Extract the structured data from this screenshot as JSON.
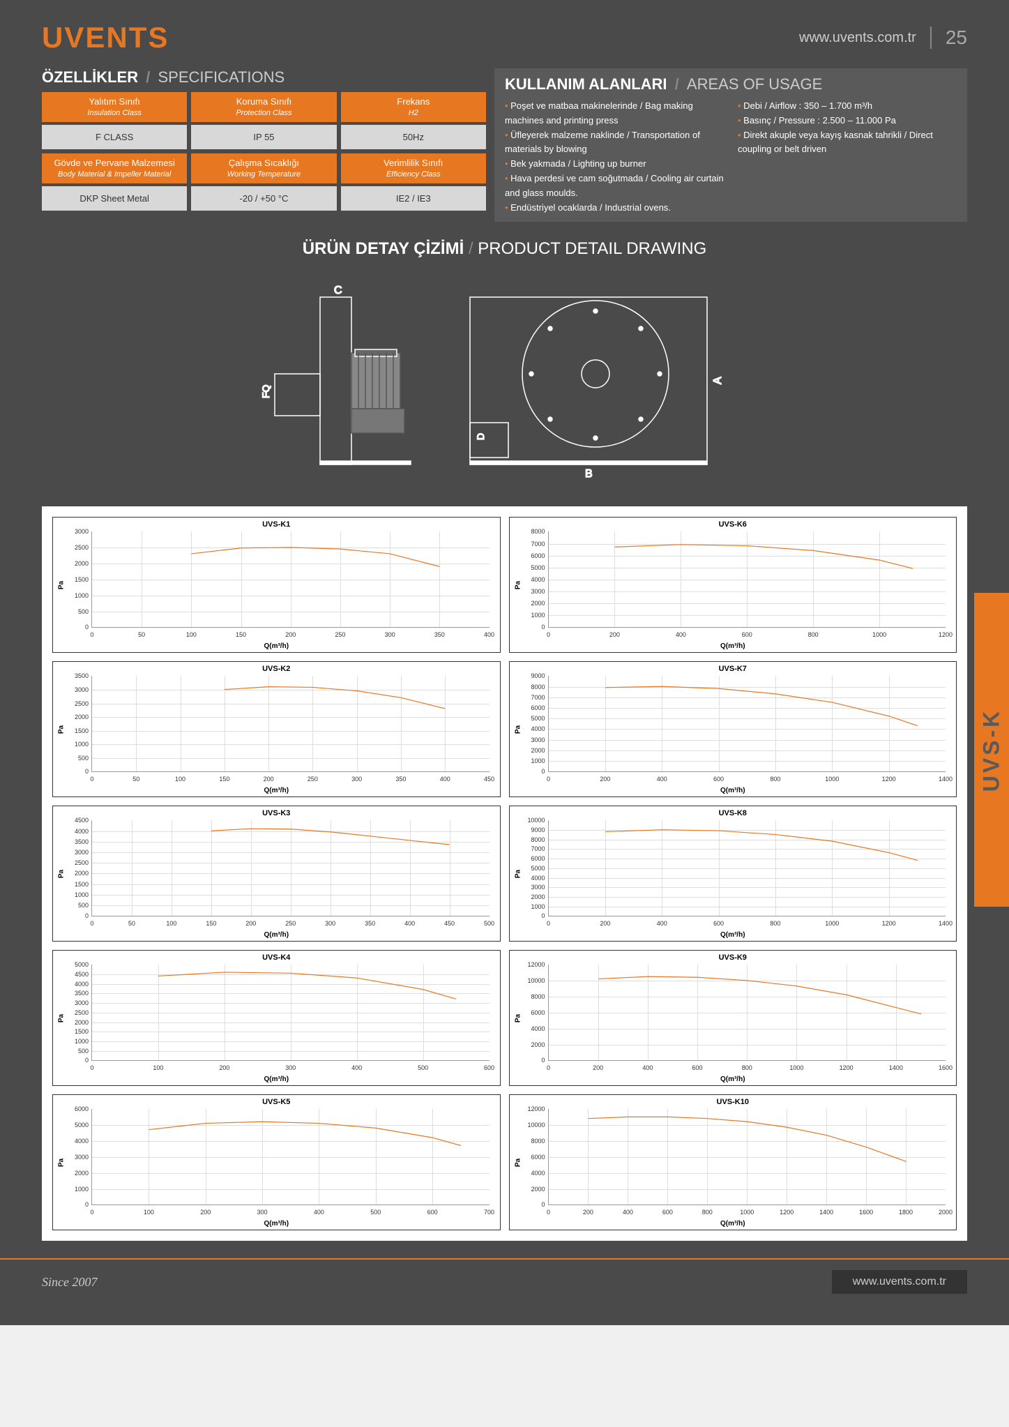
{
  "brand": "UVENTS",
  "url": "www.uvents.com.tr",
  "page_number": "25",
  "side_tab": "UVS-K",
  "since": "Since 2007",
  "specs": {
    "title_tr": "ÖZELLİKLER",
    "title_en": "SPECIFICATIONS",
    "row1": [
      {
        "head_tr": "Yalıtım Sınıfı",
        "head_en": "Insulation Class",
        "value": "F CLASS"
      },
      {
        "head_tr": "Koruma Sınıfı",
        "head_en": "Protection Class",
        "value": "IP 55"
      },
      {
        "head_tr": "Frekans",
        "head_en": "H2",
        "value": "50Hz"
      }
    ],
    "row2": [
      {
        "head_tr": "Gövde ve Pervane Malzemesi",
        "head_en": "Body Material & Impeller Material",
        "value": "DKP Sheet Metal"
      },
      {
        "head_tr": "Çalışma Sıcaklığı",
        "head_en": "Working Temperature",
        "value": "-20 / +50 °C"
      },
      {
        "head_tr": "Verimlilik Sınıfı",
        "head_en": "Efficiency Class",
        "value": "IE2 / IE3"
      }
    ]
  },
  "usage": {
    "title_tr": "KULLANIM ALANLARI",
    "title_en": "AREAS OF USAGE",
    "col1": [
      "Poşet ve matbaa makinelerinde / Bag making machines and printing press",
      "Üfleyerek malzeme naklinde / Transportation of materials by blowing",
      "Bek yakmada / Lighting up burner",
      "Hava perdesi ve cam soğutmada / Cooling air curtain and glass moulds.",
      "Endüstriyel ocaklarda / Industrial ovens."
    ],
    "col2": [
      "Debi / Airflow : 350 – 1.700 m³/h",
      "Basınç / Pressure : 2.500 – 11.000 Pa",
      "Direkt akuple veya kayış kasnak tahrikli / Direct coupling or belt driven"
    ]
  },
  "drawing": {
    "title_tr": "ÜRÜN DETAY ÇİZİMİ",
    "title_en": "PRODUCT DETAIL DRAWING",
    "labels": {
      "A": "A",
      "B": "B",
      "C": "C",
      "D": "D",
      "FQ": "FQ"
    }
  },
  "chart_common": {
    "ylabel": "Pa",
    "xlabel": "Q(m³/h)",
    "line_color": "#e87722",
    "grid_color": "#dddddd",
    "axis_color": "#999999",
    "title_fontsize": 11,
    "tick_fontsize": 9
  },
  "charts": [
    {
      "title": "UVS-K1",
      "ymax": 3000,
      "ystep": 500,
      "xmax": 400,
      "xstep": 50,
      "points": [
        [
          100,
          2300
        ],
        [
          150,
          2480
        ],
        [
          200,
          2500
        ],
        [
          250,
          2450
        ],
        [
          300,
          2300
        ],
        [
          350,
          1900
        ]
      ]
    },
    {
      "title": "UVS-K6",
      "ymax": 8000,
      "ystep": 1000,
      "xmax": 1200,
      "xstep": 200,
      "points": [
        [
          200,
          6700
        ],
        [
          400,
          6900
        ],
        [
          600,
          6800
        ],
        [
          800,
          6400
        ],
        [
          1000,
          5600
        ],
        [
          1100,
          4900
        ]
      ]
    },
    {
      "title": "UVS-K2",
      "ymax": 3500,
      "ystep": 500,
      "xmax": 450,
      "xstep": 50,
      "points": [
        [
          150,
          3000
        ],
        [
          200,
          3100
        ],
        [
          250,
          3080
        ],
        [
          300,
          2950
        ],
        [
          350,
          2700
        ],
        [
          400,
          2300
        ]
      ]
    },
    {
      "title": "UVS-K7",
      "ymax": 9000,
      "ystep": 1000,
      "xmax": 1400,
      "xstep": 200,
      "points": [
        [
          200,
          7900
        ],
        [
          400,
          8000
        ],
        [
          600,
          7800
        ],
        [
          800,
          7300
        ],
        [
          1000,
          6500
        ],
        [
          1200,
          5200
        ],
        [
          1300,
          4300
        ]
      ]
    },
    {
      "title": "UVS-K3",
      "ymax": 4500,
      "ystep": 500,
      "xmax": 500,
      "xstep": 50,
      "points": [
        [
          150,
          4000
        ],
        [
          200,
          4100
        ],
        [
          250,
          4080
        ],
        [
          300,
          3950
        ],
        [
          350,
          3750
        ],
        [
          400,
          3550
        ],
        [
          450,
          3350
        ]
      ]
    },
    {
      "title": "UVS-K8",
      "ymax": 10000,
      "ystep": 1000,
      "xmax": 1400,
      "xstep": 200,
      "points": [
        [
          200,
          8800
        ],
        [
          400,
          9000
        ],
        [
          600,
          8900
        ],
        [
          800,
          8500
        ],
        [
          1000,
          7800
        ],
        [
          1200,
          6600
        ],
        [
          1300,
          5800
        ]
      ]
    },
    {
      "title": "UVS-K4",
      "ymax": 5000,
      "ystep": 500,
      "xmax": 600,
      "xstep": 100,
      "points": [
        [
          100,
          4400
        ],
        [
          200,
          4600
        ],
        [
          300,
          4550
        ],
        [
          400,
          4300
        ],
        [
          500,
          3700
        ],
        [
          550,
          3200
        ]
      ]
    },
    {
      "title": "UVS-K9",
      "ymax": 12000,
      "ystep": 2000,
      "xmax": 1600,
      "xstep": 200,
      "points": [
        [
          200,
          10200
        ],
        [
          400,
          10500
        ],
        [
          600,
          10400
        ],
        [
          800,
          10000
        ],
        [
          1000,
          9300
        ],
        [
          1200,
          8200
        ],
        [
          1400,
          6600
        ],
        [
          1500,
          5800
        ]
      ]
    },
    {
      "title": "UVS-K5",
      "ymax": 6000,
      "ystep": 1000,
      "xmax": 700,
      "xstep": 100,
      "points": [
        [
          100,
          4700
        ],
        [
          200,
          5100
        ],
        [
          300,
          5200
        ],
        [
          400,
          5100
        ],
        [
          500,
          4800
        ],
        [
          600,
          4200
        ],
        [
          650,
          3700
        ]
      ]
    },
    {
      "title": "UVS-K10",
      "ymax": 12000,
      "ystep": 2000,
      "xmax": 2000,
      "xstep": 200,
      "points": [
        [
          200,
          10800
        ],
        [
          400,
          11000
        ],
        [
          600,
          11000
        ],
        [
          800,
          10800
        ],
        [
          1000,
          10400
        ],
        [
          1200,
          9700
        ],
        [
          1400,
          8700
        ],
        [
          1600,
          7200
        ],
        [
          1800,
          5400
        ]
      ]
    }
  ]
}
